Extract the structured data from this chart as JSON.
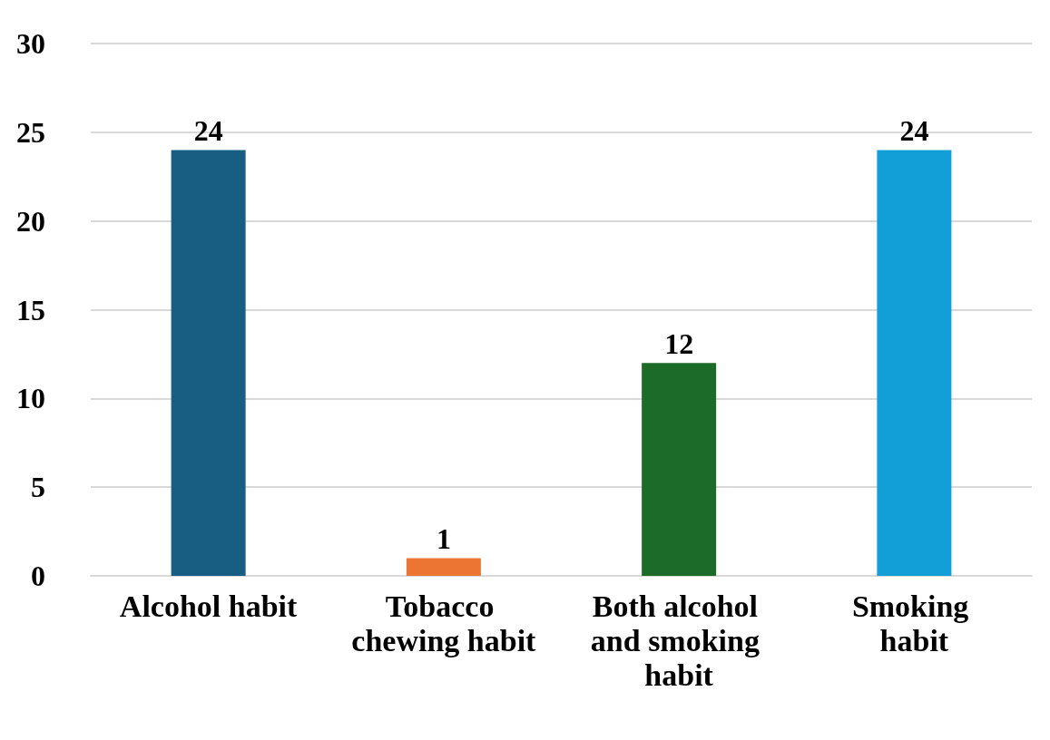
{
  "chart_data": {
    "type": "bar",
    "categories": [
      "Alcohol habit",
      "Tobacco chewing habit",
      "Both alcohol and smoking habit",
      "Smoking habit"
    ],
    "values": [
      24,
      1,
      12,
      24
    ],
    "colors": [
      "#175e82",
      "#ed7534",
      "#1c6b28",
      "#129fd8"
    ],
    "ylim": [
      0,
      30
    ],
    "yticks": [
      0,
      5,
      10,
      15,
      20,
      25,
      30
    ],
    "grid": "y",
    "data_labels": true
  }
}
